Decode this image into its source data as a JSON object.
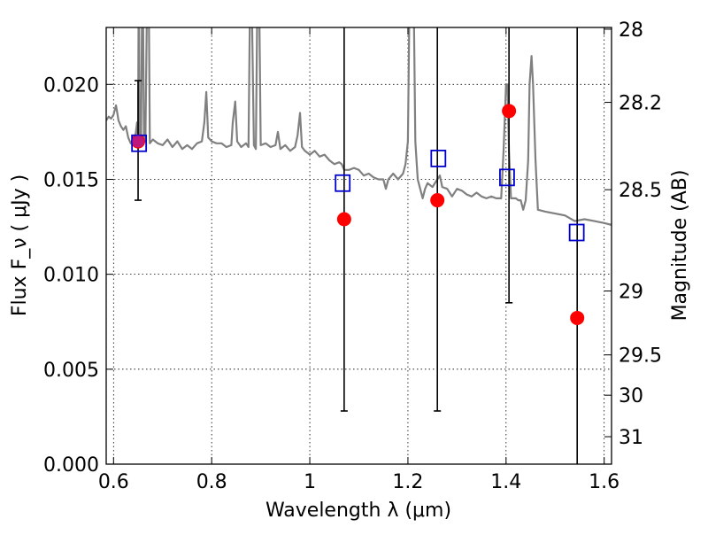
{
  "chart_data": {
    "type": "scatter",
    "xlabel": "Wavelength  λ (μm)",
    "ylabel": "Flux  F_ν  ( μJy )",
    "ylabel_right": "Magnitude (AB)",
    "xlim": [
      0.585,
      1.615
    ],
    "ylim": [
      0.0,
      0.023
    ],
    "grid": true,
    "legend": "none",
    "x_ticks": [
      {
        "value": 0.6,
        "label": "0.6"
      },
      {
        "value": 0.8,
        "label": "0.8"
      },
      {
        "value": 1.0,
        "label": "1"
      },
      {
        "value": 1.2,
        "label": "1.2"
      },
      {
        "value": 1.4,
        "label": "1.4"
      },
      {
        "value": 1.6,
        "label": "1.6"
      }
    ],
    "y_ticks": [
      {
        "value": 0.0,
        "label": "0.000"
      },
      {
        "value": 0.005,
        "label": "0.005"
      },
      {
        "value": 0.01,
        "label": "0.010"
      },
      {
        "value": 0.015,
        "label": "0.015"
      },
      {
        "value": 0.02,
        "label": "0.020"
      }
    ],
    "y_right_ticks": [
      {
        "value": 28,
        "label": "28"
      },
      {
        "value": 28.2,
        "label": "28.2"
      },
      {
        "value": 28.5,
        "label": "28.5"
      },
      {
        "value": 29,
        "label": "29"
      },
      {
        "value": 29.5,
        "label": "29.5"
      },
      {
        "value": 30,
        "label": "30"
      },
      {
        "value": 31,
        "label": "31"
      }
    ],
    "series": [
      {
        "type": "line",
        "color": "#808080",
        "points": [
          [
            0.585,
            0.0181
          ],
          [
            0.59,
            0.0183
          ],
          [
            0.595,
            0.0182
          ],
          [
            0.6,
            0.0184
          ],
          [
            0.605,
            0.0189
          ],
          [
            0.61,
            0.0181
          ],
          [
            0.615,
            0.0178
          ],
          [
            0.62,
            0.0176
          ],
          [
            0.625,
            0.0178
          ],
          [
            0.63,
            0.0172
          ],
          [
            0.635,
            0.0169
          ],
          [
            0.64,
            0.0171
          ],
          [
            0.645,
            0.0174
          ],
          [
            0.648,
            0.018
          ],
          [
            0.65,
            0.0172
          ],
          [
            0.651,
            0.024
          ],
          [
            0.652,
            0.024
          ],
          [
            0.653,
            0.0172
          ],
          [
            0.656,
            0.017
          ],
          [
            0.658,
            0.024
          ],
          [
            0.66,
            0.024
          ],
          [
            0.662,
            0.0172
          ],
          [
            0.665,
            0.017
          ],
          [
            0.668,
            0.024
          ],
          [
            0.672,
            0.024
          ],
          [
            0.674,
            0.0169
          ],
          [
            0.68,
            0.0171
          ],
          [
            0.69,
            0.0169
          ],
          [
            0.7,
            0.0168
          ],
          [
            0.71,
            0.0171
          ],
          [
            0.72,
            0.0167
          ],
          [
            0.73,
            0.017
          ],
          [
            0.74,
            0.0166
          ],
          [
            0.75,
            0.0168
          ],
          [
            0.76,
            0.0166
          ],
          [
            0.77,
            0.0169
          ],
          [
            0.78,
            0.017
          ],
          [
            0.785,
            0.018
          ],
          [
            0.789,
            0.0196
          ],
          [
            0.793,
            0.0172
          ],
          [
            0.8,
            0.017
          ],
          [
            0.81,
            0.0169
          ],
          [
            0.82,
            0.0169
          ],
          [
            0.83,
            0.0167
          ],
          [
            0.84,
            0.0168
          ],
          [
            0.843,
            0.018
          ],
          [
            0.848,
            0.0191
          ],
          [
            0.852,
            0.017
          ],
          [
            0.86,
            0.0167
          ],
          [
            0.87,
            0.0169
          ],
          [
            0.875,
            0.0167
          ],
          [
            0.878,
            0.024
          ],
          [
            0.882,
            0.024
          ],
          [
            0.886,
            0.0168
          ],
          [
            0.89,
            0.0166
          ],
          [
            0.893,
            0.024
          ],
          [
            0.897,
            0.024
          ],
          [
            0.9,
            0.0168
          ],
          [
            0.91,
            0.0169
          ],
          [
            0.92,
            0.0167
          ],
          [
            0.93,
            0.0168
          ],
          [
            0.935,
            0.0175
          ],
          [
            0.94,
            0.0166
          ],
          [
            0.95,
            0.0168
          ],
          [
            0.96,
            0.0165
          ],
          [
            0.97,
            0.0167
          ],
          [
            0.975,
            0.0173
          ],
          [
            0.98,
            0.0185
          ],
          [
            0.984,
            0.0167
          ],
          [
            0.99,
            0.0165
          ],
          [
            1.0,
            0.0163
          ],
          [
            1.01,
            0.0165
          ],
          [
            1.02,
            0.0162
          ],
          [
            1.03,
            0.0163
          ],
          [
            1.04,
            0.016
          ],
          [
            1.05,
            0.0158
          ],
          [
            1.06,
            0.0159
          ],
          [
            1.065,
            0.0158
          ],
          [
            1.07,
            0.0155
          ],
          [
            1.08,
            0.0155
          ],
          [
            1.09,
            0.0156
          ],
          [
            1.1,
            0.0155
          ],
          [
            1.11,
            0.0152
          ],
          [
            1.12,
            0.0153
          ],
          [
            1.13,
            0.0151
          ],
          [
            1.14,
            0.015
          ],
          [
            1.15,
            0.015
          ],
          [
            1.155,
            0.0145
          ],
          [
            1.16,
            0.015
          ],
          [
            1.17,
            0.0153
          ],
          [
            1.18,
            0.015
          ],
          [
            1.19,
            0.0153
          ],
          [
            1.195,
            0.0158
          ],
          [
            1.2,
            0.017
          ],
          [
            1.203,
            0.024
          ],
          [
            1.212,
            0.024
          ],
          [
            1.215,
            0.017
          ],
          [
            1.22,
            0.015
          ],
          [
            1.225,
            0.0145
          ],
          [
            1.23,
            0.014
          ],
          [
            1.235,
            0.0145
          ],
          [
            1.24,
            0.0148
          ],
          [
            1.25,
            0.0146
          ],
          [
            1.26,
            0.015
          ],
          [
            1.265,
            0.0152
          ],
          [
            1.27,
            0.0146
          ],
          [
            1.28,
            0.0145
          ],
          [
            1.29,
            0.0141
          ],
          [
            1.3,
            0.0145
          ],
          [
            1.31,
            0.0144
          ],
          [
            1.32,
            0.0142
          ],
          [
            1.33,
            0.0141
          ],
          [
            1.34,
            0.0143
          ],
          [
            1.35,
            0.0141
          ],
          [
            1.36,
            0.014
          ],
          [
            1.37,
            0.0141
          ],
          [
            1.38,
            0.014
          ],
          [
            1.39,
            0.014
          ],
          [
            1.395,
            0.0165
          ],
          [
            1.4,
            0.02
          ],
          [
            1.403,
            0.02
          ],
          [
            1.406,
            0.0165
          ],
          [
            1.41,
            0.014
          ],
          [
            1.42,
            0.014
          ],
          [
            1.425,
            0.0139
          ],
          [
            1.43,
            0.0139
          ],
          [
            1.435,
            0.0134
          ],
          [
            1.44,
            0.0139
          ],
          [
            1.445,
            0.016
          ],
          [
            1.448,
            0.02
          ],
          [
            1.452,
            0.0215
          ],
          [
            1.455,
            0.02
          ],
          [
            1.46,
            0.016
          ],
          [
            1.465,
            0.0134
          ],
          [
            1.48,
            0.0133
          ],
          [
            1.5,
            0.0132
          ],
          [
            1.52,
            0.0131
          ],
          [
            1.54,
            0.0128
          ],
          [
            1.56,
            0.0129
          ],
          [
            1.58,
            0.0128
          ],
          [
            1.6,
            0.0127
          ],
          [
            1.615,
            0.0126
          ]
        ]
      },
      {
        "type": "errorbar",
        "color": "#000000",
        "points": [
          {
            "x": 0.65,
            "y": 0.017,
            "ylow": 0.0139,
            "yhigh": 0.0202
          },
          {
            "x": 1.07,
            "y": 0.0129,
            "ylow": 0.0028,
            "yhigh": 0.023
          },
          {
            "x": 1.26,
            "y": 0.0139,
            "ylow": 0.0028,
            "yhigh": 0.023
          },
          {
            "x": 1.406,
            "y": 0.0186,
            "ylow": 0.0085,
            "yhigh": 0.023
          },
          {
            "x": 1.545,
            "y": 0.0077,
            "ylow": 0.0,
            "yhigh": 0.023
          }
        ]
      },
      {
        "type": "scatter",
        "marker": "circle",
        "color": "#ff0000",
        "points": [
          [
            0.65,
            0.017
          ],
          [
            1.07,
            0.0129
          ],
          [
            1.26,
            0.0139
          ],
          [
            1.406,
            0.0186
          ],
          [
            1.545,
            0.0077
          ]
        ]
      },
      {
        "type": "scatter",
        "marker": "square",
        "color": "#0000cc",
        "points": [
          [
            0.652,
            0.0169
          ],
          [
            1.067,
            0.0148
          ],
          [
            1.262,
            0.0161
          ],
          [
            1.402,
            0.0151
          ],
          [
            1.544,
            0.0122
          ]
        ]
      }
    ]
  }
}
